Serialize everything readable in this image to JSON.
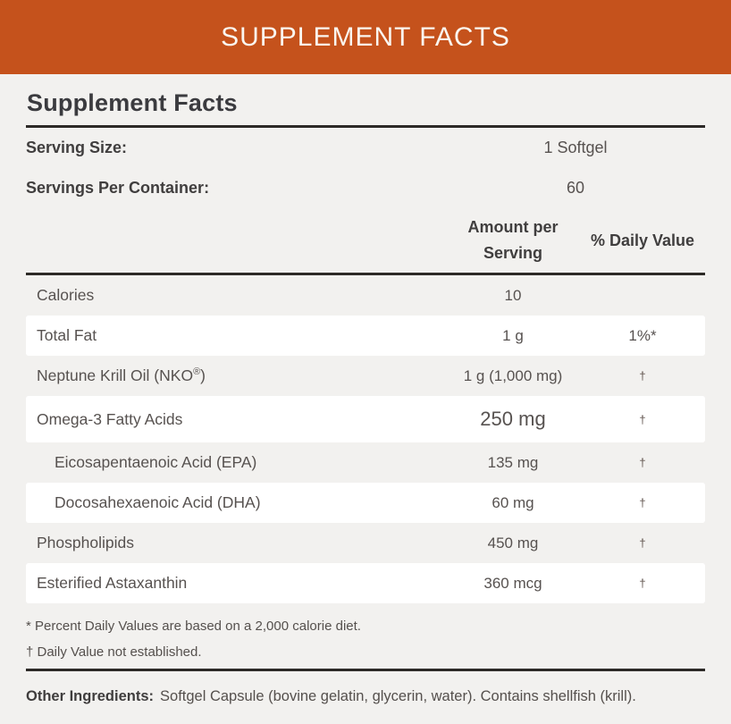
{
  "colors": {
    "accent_orange": "#C5521C",
    "page_background": "#F2F1EF",
    "row_highlight": "#FFFFFF",
    "rule": "#2D2A27"
  },
  "banner": {
    "title": "SUPPLEMENT FACTS"
  },
  "section": {
    "heading": "Supplement Facts"
  },
  "serving": {
    "size_label": "Serving Size:",
    "size_value": "1 Softgel",
    "count_label": "Servings Per Container:",
    "count_value": "60"
  },
  "columns": {
    "amount_header": "Amount per Serving",
    "dv_header": "% Daily Value"
  },
  "table": {
    "rows": [
      {
        "name": "Calories",
        "amount": "10",
        "dv": ""
      },
      {
        "name": "Total Fat",
        "amount": "1 g",
        "dv": "1%*"
      },
      {
        "name_pre": "Neptune Krill Oil (NKO",
        "name_sup": "®",
        "name_post": ")",
        "amount": "1 g (1,000 mg)",
        "dv": "†"
      },
      {
        "name": "Omega-3 Fatty Acids",
        "amount": "250 mg",
        "dv": "†"
      },
      {
        "name": "Eicosapentaenoic Acid (EPA)",
        "amount": "135 mg",
        "dv": "†"
      },
      {
        "name": "Docosahexaenoic Acid (DHA)",
        "amount": "60 mg",
        "dv": "†"
      },
      {
        "name": "Phospholipids",
        "amount": "450 mg",
        "dv": "†"
      },
      {
        "name": "Esterified Astaxanthin",
        "amount": "360 mcg",
        "dv": "†"
      }
    ]
  },
  "footnotes": {
    "percent": "* Percent Daily Values are based on a 2,000 calorie diet.",
    "dagger": "† Daily Value not established."
  },
  "other_ingredients": {
    "label": "Other Ingredients:",
    "text": "Softgel Capsule (bovine gelatin, glycerin, water). Contains shellfish (krill)."
  }
}
